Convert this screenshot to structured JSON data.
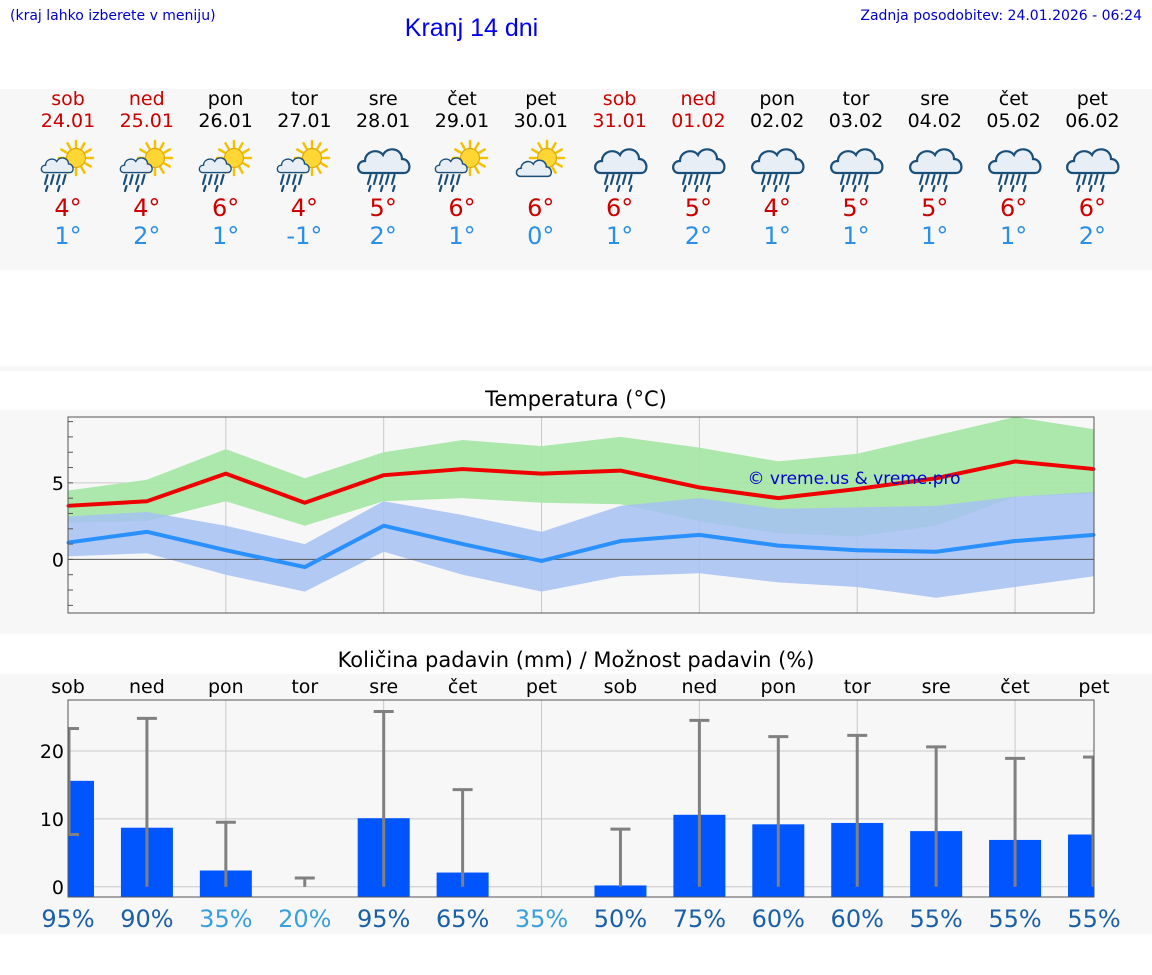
{
  "header": {
    "hint": "(kraj lahko izberete v meniju)",
    "title": "Kranj 14 dni",
    "updated": "Zadnja posodobitev: 24.01.2026 - 06:24"
  },
  "days": [
    {
      "name": "sob",
      "date": "24.01",
      "weekend": true,
      "icon": "sun-cloud-rain-icon",
      "max": "4°",
      "min": "1°"
    },
    {
      "name": "ned",
      "date": "25.01",
      "weekend": true,
      "icon": "sun-cloud-rain-icon",
      "max": "4°",
      "min": "2°"
    },
    {
      "name": "pon",
      "date": "26.01",
      "weekend": false,
      "icon": "sun-cloud-rain-icon",
      "max": "6°",
      "min": "1°"
    },
    {
      "name": "tor",
      "date": "27.01",
      "weekend": false,
      "icon": "sun-cloud-rain-icon",
      "max": "4°",
      "min": "-1°"
    },
    {
      "name": "sre",
      "date": "28.01",
      "weekend": false,
      "icon": "cloud-rain-icon",
      "max": "5°",
      "min": "2°"
    },
    {
      "name": "čet",
      "date": "29.01",
      "weekend": false,
      "icon": "sun-cloud-rain-icon",
      "max": "6°",
      "min": "1°"
    },
    {
      "name": "pet",
      "date": "30.01",
      "weekend": false,
      "icon": "sun-cloud-icon",
      "max": "6°",
      "min": "0°"
    },
    {
      "name": "sob",
      "date": "31.01",
      "weekend": true,
      "icon": "cloud-rain-icon",
      "max": "6°",
      "min": "1°"
    },
    {
      "name": "ned",
      "date": "01.02",
      "weekend": true,
      "icon": "cloud-rain-icon",
      "max": "5°",
      "min": "2°"
    },
    {
      "name": "pon",
      "date": "02.02",
      "weekend": false,
      "icon": "cloud-rain-icon",
      "max": "4°",
      "min": "1°"
    },
    {
      "name": "tor",
      "date": "03.02",
      "weekend": false,
      "icon": "cloud-rain-icon",
      "max": "5°",
      "min": "1°"
    },
    {
      "name": "sre",
      "date": "04.02",
      "weekend": false,
      "icon": "cloud-rain-icon",
      "max": "5°",
      "min": "1°"
    },
    {
      "name": "čet",
      "date": "05.02",
      "weekend": false,
      "icon": "cloud-rain-icon",
      "max": "6°",
      "min": "1°"
    },
    {
      "name": "pet",
      "date": "06.02",
      "weekend": false,
      "icon": "cloud-rain-icon",
      "max": "6°",
      "min": "2°"
    }
  ],
  "colors": {
    "weekend": "#cc0000",
    "weekday": "#000000",
    "max_line": "#ee0000",
    "max_band": "#a8e6a8",
    "min_line": "#2a8fff",
    "min_band": "#a6c1f2",
    "precip_bar": "#0055ff",
    "whisker": "#808080",
    "prob_high": "#1a5fa8",
    "prob_low": "#3aa0dd"
  },
  "chart_data": [
    {
      "type": "line",
      "title": "Temperatura (°C)",
      "watermark": "© vreme.us & vreme.pro",
      "ylim": [
        -3.5,
        9.3
      ],
      "yticks": [
        0,
        5
      ],
      "x": [
        0,
        1,
        2,
        3,
        4,
        5,
        6,
        7,
        8,
        9,
        10,
        11,
        12,
        13
      ],
      "series": [
        {
          "name": "max",
          "values": [
            3.5,
            3.8,
            5.6,
            3.7,
            5.5,
            5.9,
            5.6,
            5.8,
            4.7,
            4.0,
            4.6,
            5.3,
            6.4,
            5.9
          ],
          "band_low": [
            2.4,
            2.5,
            3.8,
            2.2,
            3.8,
            4.0,
            3.7,
            3.6,
            2.5,
            1.7,
            1.5,
            2.2,
            4.1,
            4.3
          ],
          "band_high": [
            4.5,
            5.2,
            7.2,
            5.3,
            7.0,
            7.8,
            7.4,
            8.0,
            7.3,
            6.4,
            6.9,
            8.1,
            9.3,
            8.5
          ]
        },
        {
          "name": "min",
          "values": [
            1.1,
            1.8,
            0.6,
            -0.5,
            2.2,
            1.0,
            -0.1,
            1.2,
            1.6,
            0.9,
            0.6,
            0.5,
            1.2,
            1.6
          ],
          "band_low": [
            0.2,
            0.4,
            -1.0,
            -2.1,
            0.5,
            -1.0,
            -2.1,
            -1.1,
            -0.9,
            -1.5,
            -1.8,
            -2.5,
            -1.8,
            -1.1
          ],
          "band_high": [
            2.8,
            3.1,
            2.2,
            1.0,
            3.8,
            2.9,
            1.8,
            3.5,
            4.0,
            3.3,
            3.4,
            3.5,
            4.1,
            4.4
          ]
        }
      ]
    },
    {
      "type": "bar",
      "title": "Količina padavin (mm) / Možnost padavin (%)",
      "categories": [
        "sob",
        "ned",
        "pon",
        "tor",
        "sre",
        "čet",
        "pet",
        "sob",
        "ned",
        "pon",
        "tor",
        "sre",
        "čet",
        "pet"
      ],
      "ylim": [
        -1.5,
        27.5
      ],
      "yticks": [
        0,
        10,
        20
      ],
      "values": [
        15.6,
        8.7,
        2.4,
        0.0,
        10.1,
        2.1,
        0.0,
        0.2,
        10.6,
        9.2,
        9.4,
        8.2,
        6.9,
        7.7
      ],
      "error_low": [
        7.7,
        0.0,
        0.0,
        0.0,
        0.0,
        0.0,
        0.0,
        0.0,
        0.0,
        0.0,
        0.0,
        0.0,
        0.0,
        0.0
      ],
      "error_high": [
        23.3,
        24.8,
        9.5,
        1.3,
        25.8,
        14.3,
        0.0,
        8.5,
        24.5,
        22.1,
        22.3,
        20.6,
        18.9,
        19.1
      ],
      "probability": [
        "95%",
        "90%",
        "35%",
        "20%",
        "95%",
        "65%",
        "35%",
        "50%",
        "75%",
        "60%",
        "60%",
        "55%",
        "55%",
        "55%"
      ]
    }
  ]
}
